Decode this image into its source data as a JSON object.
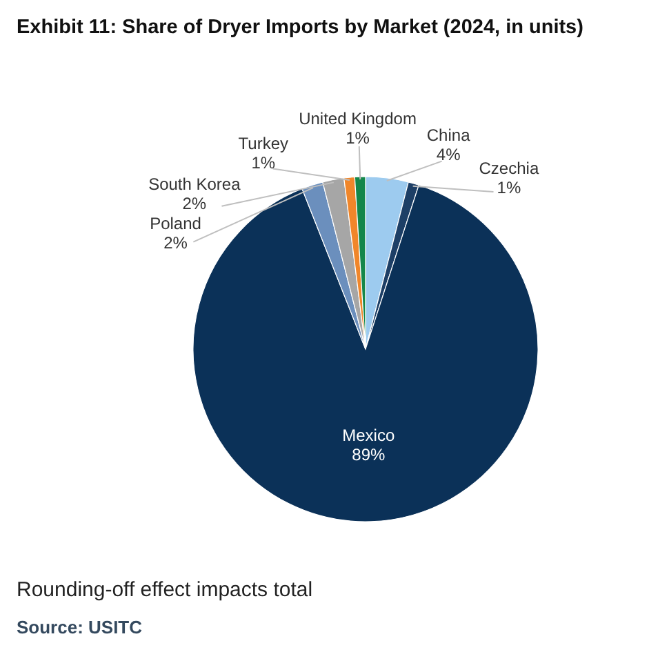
{
  "chart_data": {
    "type": "pie",
    "title": "Exhibit 11: Share of Dryer Imports by Market (2024, in units)",
    "categories": [
      "China",
      "Czechia",
      "Mexico",
      "Poland",
      "South Korea",
      "Turkey",
      "United Kingdom"
    ],
    "values": [
      4,
      1,
      89,
      2,
      2,
      1,
      1
    ],
    "colors": [
      "#9dcbef",
      "#1d3f66",
      "#0b3158",
      "#6b8fbd",
      "#a6a6a6",
      "#f0862a",
      "#14874a"
    ],
    "value_labels": [
      "4%",
      "1%",
      "89%",
      "2%",
      "2%",
      "1%",
      "1%"
    ],
    "annotations": [
      "Rounding-off effect impacts total",
      "Source: USITC"
    ]
  }
}
